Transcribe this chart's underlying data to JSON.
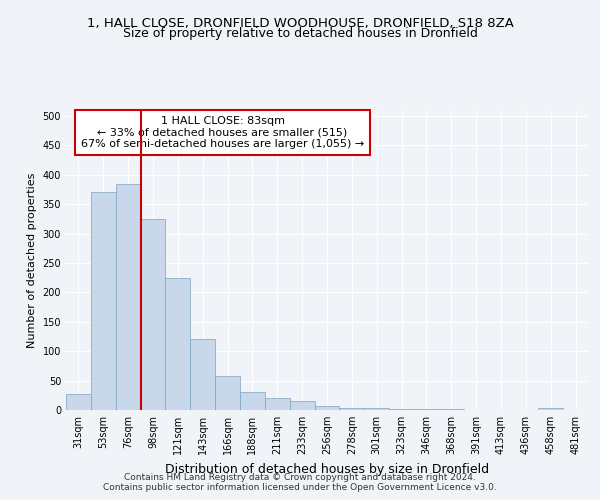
{
  "title": "1, HALL CLOSE, DRONFIELD WOODHOUSE, DRONFIELD, S18 8ZA",
  "subtitle": "Size of property relative to detached houses in Dronfield",
  "xlabel": "Distribution of detached houses by size in Dronfield",
  "ylabel": "Number of detached properties",
  "categories": [
    "31sqm",
    "53sqm",
    "76sqm",
    "98sqm",
    "121sqm",
    "143sqm",
    "166sqm",
    "188sqm",
    "211sqm",
    "233sqm",
    "256sqm",
    "278sqm",
    "301sqm",
    "323sqm",
    "346sqm",
    "368sqm",
    "391sqm",
    "413sqm",
    "436sqm",
    "458sqm",
    "481sqm"
  ],
  "values": [
    28,
    370,
    385,
    325,
    225,
    120,
    58,
    30,
    20,
    15,
    6,
    4,
    4,
    1,
    1,
    1,
    0,
    0,
    0,
    4,
    0
  ],
  "bar_color": "#c8d8ea",
  "bar_edge_color": "#7ba4c0",
  "vline_x": 2.5,
  "vline_color": "#cc0000",
  "annotation_text": "1 HALL CLOSE: 83sqm\n← 33% of detached houses are smaller (515)\n67% of semi-detached houses are larger (1,055) →",
  "annotation_box_color": "#ffffff",
  "annotation_box_edge_color": "#cc0000",
  "ylim": [
    0,
    510
  ],
  "yticks": [
    0,
    50,
    100,
    150,
    200,
    250,
    300,
    350,
    400,
    450,
    500
  ],
  "footer_text": "Contains HM Land Registry data © Crown copyright and database right 2024.\nContains public sector information licensed under the Open Government Licence v3.0.",
  "bg_color": "#f0f4f8",
  "grid_color": "#ffffff",
  "title_fontsize": 9.5,
  "subtitle_fontsize": 9,
  "xlabel_fontsize": 9,
  "ylabel_fontsize": 8,
  "tick_fontsize": 7,
  "annotation_fontsize": 8,
  "footer_fontsize": 6.5
}
